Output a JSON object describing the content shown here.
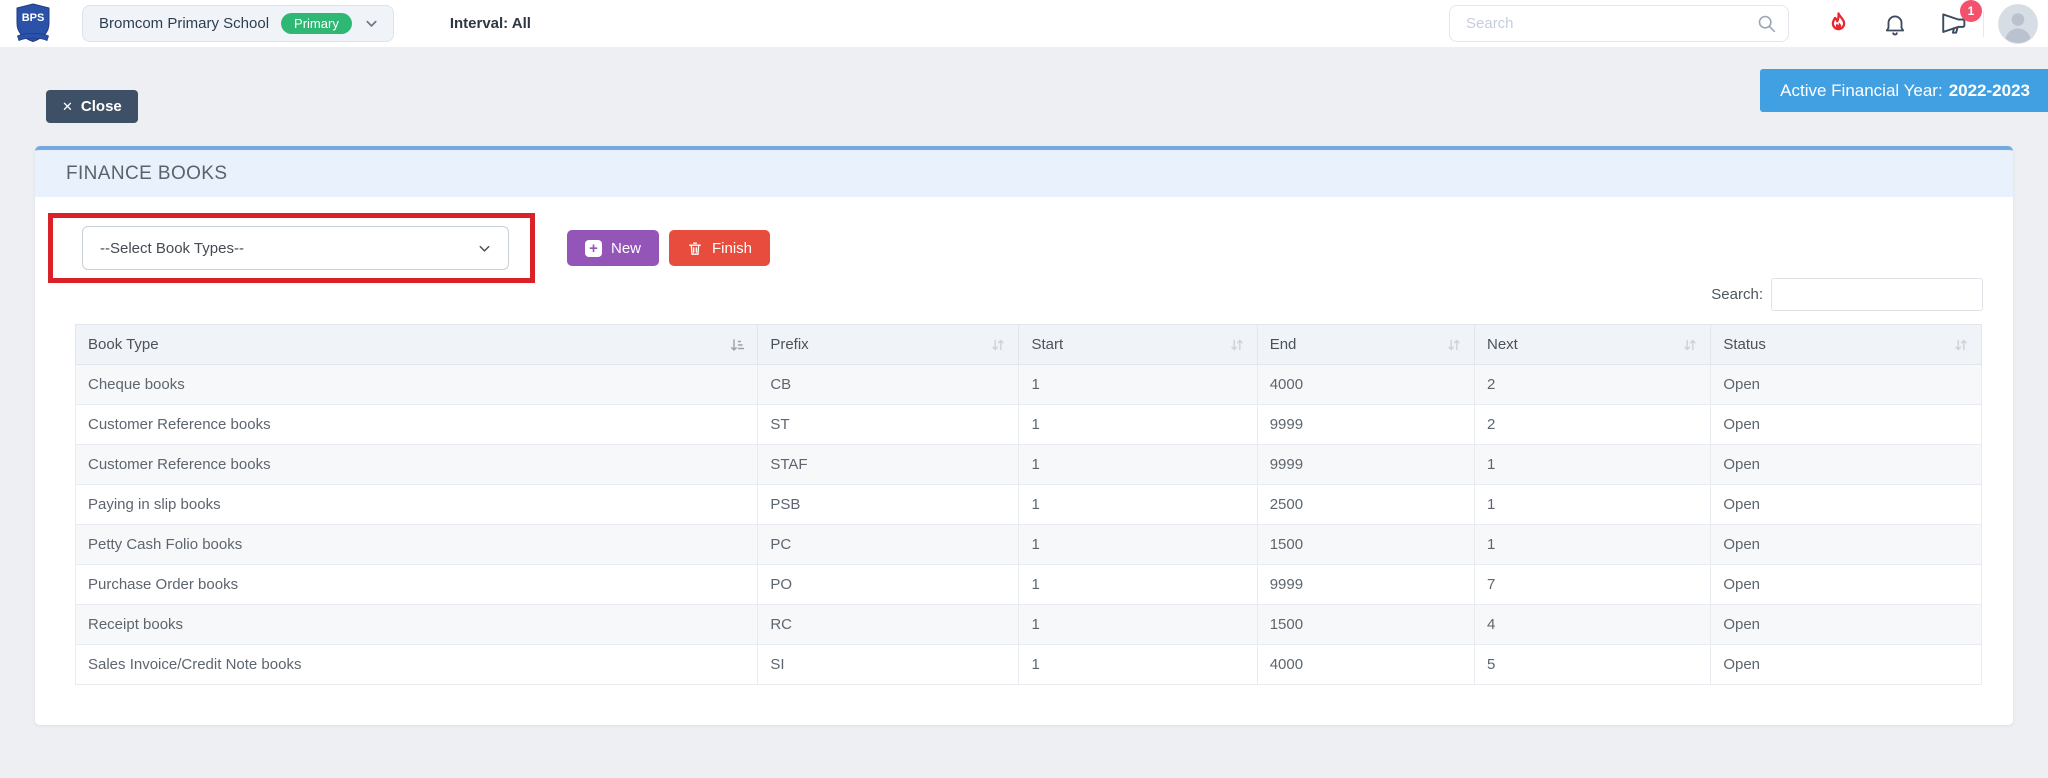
{
  "topbar": {
    "logo_text": "BPS",
    "school_selector": {
      "name": "Bromcom Primary School",
      "badge": "Primary"
    },
    "interval_label": "Interval: All",
    "search_placeholder": "Search",
    "announcement_badge_count": "1"
  },
  "toolbar": {
    "close_label": "Close",
    "active_year_label": "Active Financial Year:",
    "active_year_value": "2022-2023"
  },
  "panel": {
    "title": "FINANCE BOOKS",
    "select_placeholder": "--Select Book Types--",
    "new_label": "New",
    "finish_label": "Finish",
    "search_label": "Search:",
    "search_value": ""
  },
  "icons": {
    "close_glyph": "✕",
    "plus_glyph": "+"
  },
  "table": {
    "columns": [
      {
        "label": "Book Type",
        "sort": "amount"
      },
      {
        "label": "Prefix",
        "sort": "both"
      },
      {
        "label": "Start",
        "sort": "both"
      },
      {
        "label": "End",
        "sort": "both"
      },
      {
        "label": "Next",
        "sort": "both"
      },
      {
        "label": "Status",
        "sort": "both"
      }
    ],
    "rows": [
      [
        "Cheque books",
        "CB",
        "1",
        "4000",
        "2",
        "Open"
      ],
      [
        "Customer Reference books",
        "ST",
        "1",
        "9999",
        "2",
        "Open"
      ],
      [
        "Customer Reference books",
        "STAF",
        "1",
        "9999",
        "1",
        "Open"
      ],
      [
        "Paying in slip books",
        "PSB",
        "1",
        "2500",
        "1",
        "Open"
      ],
      [
        "Petty Cash Folio books",
        "PC",
        "1",
        "1500",
        "1",
        "Open"
      ],
      [
        "Purchase Order books",
        "PO",
        "1",
        "9999",
        "7",
        "Open"
      ],
      [
        "Receipt books",
        "RC",
        "1",
        "1500",
        "4",
        "Open"
      ],
      [
        "Sales Invoice/Credit Note books",
        "SI",
        "1",
        "4000",
        "5",
        "Open"
      ]
    ]
  },
  "colors": {
    "banner_blue": "#41a0e2",
    "primary_badge_green": "#2fb873",
    "new_button_purple": "#9355b7",
    "finish_button_red": "#e74c3c",
    "close_button_dark": "#3d5065",
    "annotation_red": "#da2128",
    "flame_red": "#e9262e",
    "badge_red": "#f4516c",
    "panel_header_blue": "#e9f1fc",
    "panel_header_border": "#76a9e1"
  }
}
